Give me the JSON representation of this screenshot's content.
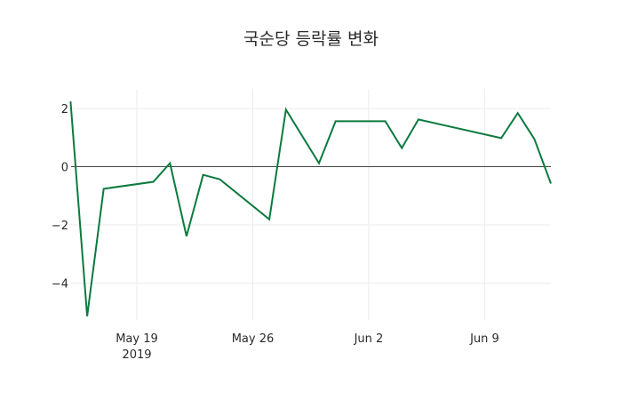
{
  "chart_data": {
    "type": "line",
    "title": "국순당 등락률 변화",
    "xlabel": "",
    "ylabel": "",
    "x": [
      "2019-05-15",
      "2019-05-16",
      "2019-05-17",
      "2019-05-20",
      "2019-05-21",
      "2019-05-22",
      "2019-05-23",
      "2019-05-24",
      "2019-05-27",
      "2019-05-28",
      "2019-05-30",
      "2019-05-31",
      "2019-06-03",
      "2019-06-04",
      "2019-06-05",
      "2019-06-10",
      "2019-06-11",
      "2019-06-12",
      "2019-06-13"
    ],
    "series": [
      {
        "name": "등락률",
        "color": "#0b7a3e",
        "values": [
          2.24,
          -5.14,
          -0.76,
          -0.52,
          0.12,
          -2.39,
          -0.28,
          -0.43,
          -1.81,
          1.96,
          0.12,
          1.56,
          1.56,
          0.64,
          1.62,
          0.98,
          1.84,
          0.95,
          -0.58
        ]
      }
    ],
    "x_ticks": [
      {
        "date": "2019-05-19",
        "label": "May 19",
        "sublabel": "2019"
      },
      {
        "date": "2019-05-26",
        "label": "May 26",
        "sublabel": ""
      },
      {
        "date": "2019-06-02",
        "label": "Jun 2",
        "sublabel": ""
      },
      {
        "date": "2019-06-09",
        "label": "Jun 9",
        "sublabel": ""
      }
    ],
    "y_ticks": [
      2,
      0,
      -2,
      -4
    ],
    "y_tick_labels": [
      "2",
      "0",
      "−2",
      "−4"
    ],
    "ylim": [
      -5.3,
      2.7
    ],
    "xlim": [
      "2019-05-15",
      "2019-06-13"
    ],
    "grid": true,
    "zero_line": true,
    "legend": false
  }
}
